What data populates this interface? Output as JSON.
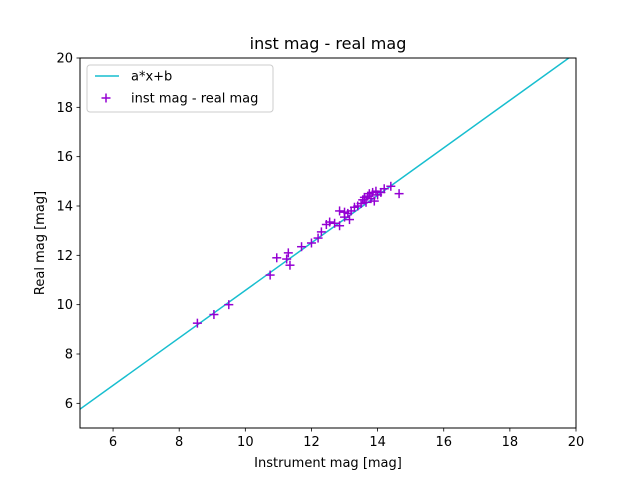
{
  "chart_data": {
    "type": "scatter",
    "title": "inst mag - real mag",
    "xlabel": "Instrument mag [mag]",
    "ylabel": "Real mag [mag]",
    "xlim": [
      5,
      20
    ],
    "ylim": [
      5,
      20
    ],
    "xticks": [
      "6",
      "8",
      "10",
      "12",
      "14",
      "16",
      "18",
      "20"
    ],
    "yticks": [
      "6",
      "8",
      "10",
      "12",
      "14",
      "16",
      "18",
      "20"
    ],
    "grid": false,
    "legend_position": "top-left",
    "fit_line": {
      "name": "a*x+b",
      "slope": 0.963,
      "intercept": 0.95,
      "color": "#17becf"
    },
    "series": [
      {
        "name": "inst mag - real mag",
        "marker": "plus",
        "color": "#9400d3",
        "points": [
          [
            8.55,
            9.25
          ],
          [
            9.05,
            9.6
          ],
          [
            9.5,
            10.0
          ],
          [
            10.75,
            11.2
          ],
          [
            10.95,
            11.9
          ],
          [
            11.25,
            11.85
          ],
          [
            11.3,
            12.1
          ],
          [
            11.35,
            11.6
          ],
          [
            11.7,
            12.35
          ],
          [
            12.0,
            12.5
          ],
          [
            12.2,
            12.7
          ],
          [
            12.3,
            12.95
          ],
          [
            12.45,
            13.25
          ],
          [
            12.55,
            13.35
          ],
          [
            12.7,
            13.3
          ],
          [
            12.85,
            13.2
          ],
          [
            12.85,
            13.8
          ],
          [
            13.0,
            13.55
          ],
          [
            13.0,
            13.75
          ],
          [
            13.1,
            13.7
          ],
          [
            13.15,
            13.45
          ],
          [
            13.2,
            13.8
          ],
          [
            13.3,
            13.95
          ],
          [
            13.4,
            14.0
          ],
          [
            13.5,
            14.1
          ],
          [
            13.55,
            14.25
          ],
          [
            13.6,
            14.35
          ],
          [
            13.65,
            14.15
          ],
          [
            13.7,
            14.4
          ],
          [
            13.75,
            14.5
          ],
          [
            13.8,
            14.3
          ],
          [
            13.85,
            14.55
          ],
          [
            13.9,
            14.2
          ],
          [
            13.95,
            14.6
          ],
          [
            14.0,
            14.45
          ],
          [
            14.1,
            14.55
          ],
          [
            14.2,
            14.7
          ],
          [
            14.4,
            14.8
          ],
          [
            14.65,
            14.5
          ]
        ]
      }
    ]
  }
}
